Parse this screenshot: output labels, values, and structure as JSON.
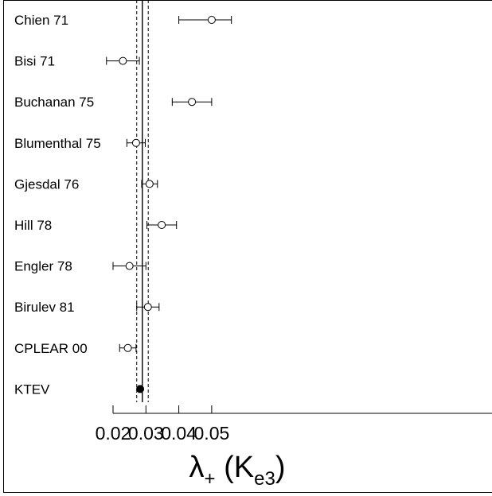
{
  "chart_data": {
    "type": "scatter",
    "subtype": "forest-plot",
    "title": "",
    "xlabel": {
      "main": "λ",
      "sub": "+",
      "open": " (K",
      "sub2": "e3",
      "close": ")"
    },
    "ylabel": "",
    "xlim": [
      0.011,
      0.055
    ],
    "xticks": [
      0.02,
      0.03,
      0.04,
      0.05
    ],
    "xtick_labels": [
      "0.02",
      "0.03",
      "0.04",
      "0.05"
    ],
    "grid": false,
    "reference_lines": [
      {
        "style": "solid",
        "x": 0.0289
      },
      {
        "style": "dashed",
        "x": 0.0272
      },
      {
        "style": "dashed",
        "x": 0.0307
      }
    ],
    "points": [
      {
        "label": "Chien 71",
        "value": 0.05,
        "err_lo": 0.04,
        "err_hi": 0.056,
        "marker": "open"
      },
      {
        "label": "Bisi 71",
        "value": 0.023,
        "err_lo": 0.018,
        "err_hi": 0.028,
        "marker": "open"
      },
      {
        "label": "Buchanan 75",
        "value": 0.044,
        "err_lo": 0.038,
        "err_hi": 0.05,
        "marker": "open"
      },
      {
        "label": "Blumenthal 75",
        "value": 0.027,
        "err_lo": 0.0242,
        "err_hi": 0.0298,
        "marker": "open"
      },
      {
        "label": "Gjesdal 76",
        "value": 0.0311,
        "err_lo": 0.0287,
        "err_hi": 0.0335,
        "marker": "open"
      },
      {
        "label": "Hill 78",
        "value": 0.0348,
        "err_lo": 0.0303,
        "err_hi": 0.0393,
        "marker": "open"
      },
      {
        "label": "Engler 78",
        "value": 0.025,
        "err_lo": 0.02,
        "err_hi": 0.03,
        "marker": "open"
      },
      {
        "label": "Birulev  81",
        "value": 0.0306,
        "err_lo": 0.0272,
        "err_hi": 0.034,
        "marker": "open"
      },
      {
        "label": "CPLEAR 00",
        "value": 0.0245,
        "err_lo": 0.022,
        "err_hi": 0.027,
        "marker": "open"
      },
      {
        "label": "KTEV",
        "value": 0.02825,
        "err_lo": 0.0278,
        "err_hi": 0.0287,
        "marker": "filled"
      }
    ]
  }
}
